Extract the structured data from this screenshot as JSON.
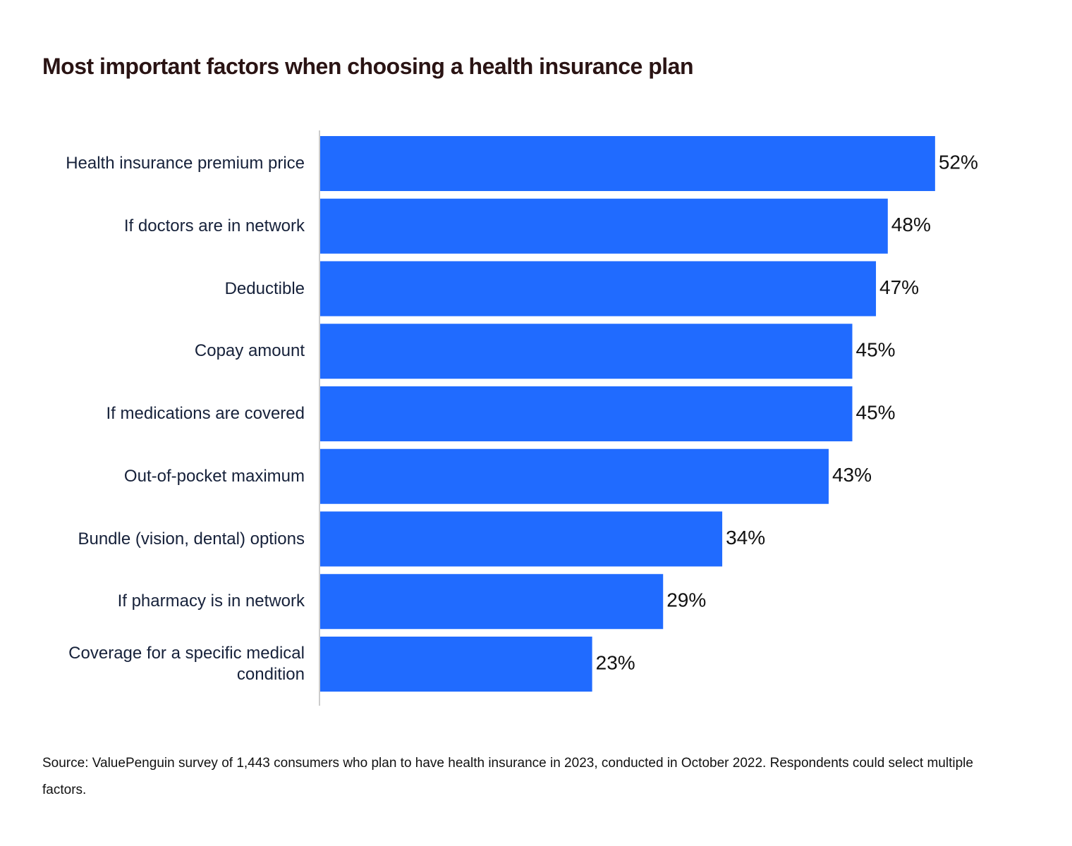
{
  "chart_data": {
    "type": "hbar",
    "title": "Most important factors when choosing a health insurance plan",
    "categories": [
      "Health insurance premium price",
      "If doctors are in network",
      "Deductible",
      "Copay amount",
      "If medications are covered",
      "Out-of-pocket maximum",
      "Bundle (vision, dental) options",
      "If pharmacy is in network",
      "Coverage for a specific medical condition"
    ],
    "values": [
      52,
      48,
      47,
      45,
      45,
      43,
      34,
      29,
      23
    ],
    "value_labels": [
      "52%",
      "48%",
      "47%",
      "45%",
      "45%",
      "43%",
      "34%",
      "29%",
      "23%"
    ],
    "color": "#206bff",
    "xlim": [
      0,
      60
    ],
    "source": "Source: ValuePenguin survey of 1,443 consumers who plan to have health insurance in 2023, conducted in October 2022. Respondents could select multiple factors."
  }
}
